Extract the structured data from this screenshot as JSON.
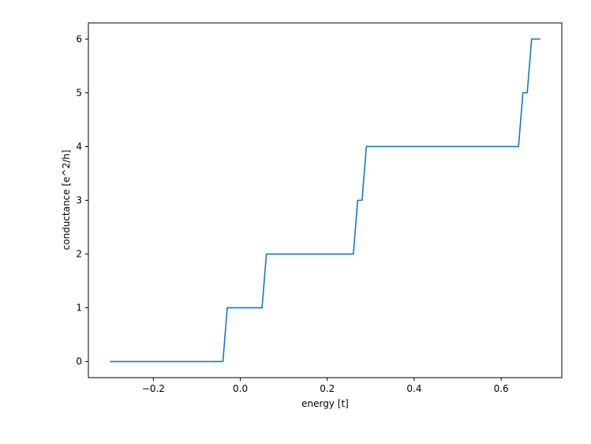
{
  "chart_data": {
    "type": "line",
    "xlabel": "energy [t]",
    "ylabel": "conductance [e^2/h]",
    "x": [
      -0.3,
      -0.04,
      -0.03,
      0.05,
      0.06,
      0.26,
      0.27,
      0.28,
      0.29,
      0.64,
      0.65,
      0.66,
      0.67,
      0.69
    ],
    "series": [
      {
        "color": "#1f77b4",
        "values": [
          0,
          0,
          1,
          1,
          2,
          2,
          3,
          3,
          4,
          4,
          5,
          5,
          6,
          6
        ]
      }
    ],
    "xlim": [
      -0.3495,
      0.7395
    ],
    "xticks": [
      {
        "value": -0.2,
        "label": "−0.2"
      },
      {
        "value": 0,
        "label": "0.0"
      },
      0.2,
      0.4,
      0.6
    ],
    "ylim": [
      -0.3,
      6.3
    ],
    "yticks": [
      0,
      1,
      2,
      3,
      4,
      5,
      6
    ]
  }
}
